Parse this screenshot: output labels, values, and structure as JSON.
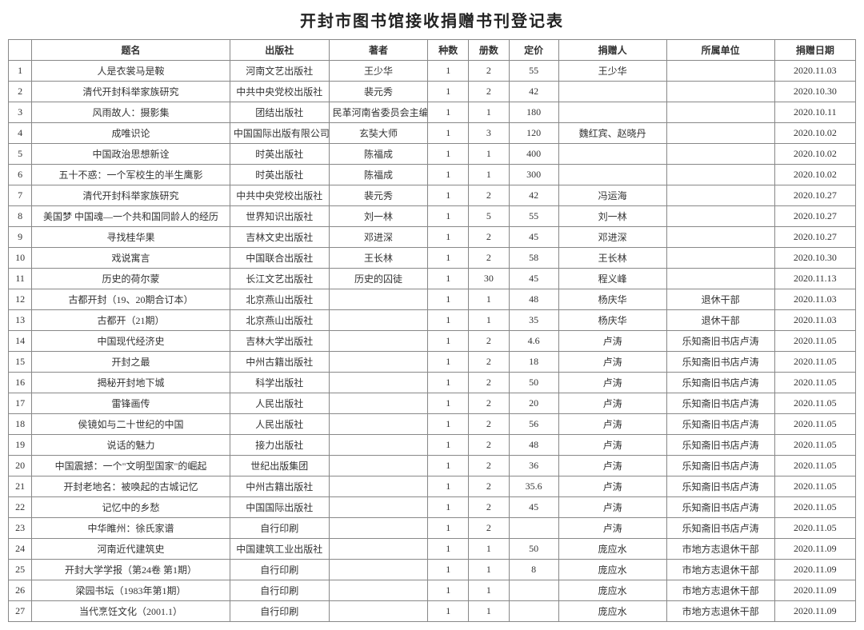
{
  "title": "开封市图书馆接收捐赠书刊登记表",
  "columns": [
    "",
    "题名",
    "出版社",
    "著者",
    "种数",
    "册数",
    "定价",
    "捐赠人",
    "所属单位",
    "捐赠日期"
  ],
  "rows": [
    {
      "n": "1",
      "title": "人是衣裳马是鞍",
      "pub": "河南文艺出版社",
      "author": "王少华",
      "kinds": "1",
      "vols": "2",
      "price": "55",
      "donor": "王少华",
      "unit": "",
      "date": "2020.11.03"
    },
    {
      "n": "2",
      "title": "清代开封科举家族研究",
      "pub": "中共中央党校出版社",
      "author": "裴元秀",
      "kinds": "1",
      "vols": "2",
      "price": "42",
      "donor": "",
      "unit": "",
      "date": "2020.10.30"
    },
    {
      "n": "3",
      "title": "风雨故人：摄影集",
      "pub": "团结出版社",
      "author": "民革河南省委员会主编",
      "kinds": "1",
      "vols": "1",
      "price": "180",
      "donor": "",
      "unit": "",
      "date": "2020.10.11"
    },
    {
      "n": "4",
      "title": "成唯识论",
      "pub": "中国国际出版有限公司",
      "author": "玄奘大师",
      "kinds": "1",
      "vols": "3",
      "price": "120",
      "donor": "魏红宾、赵晓丹",
      "unit": "",
      "date": "2020.10.02"
    },
    {
      "n": "5",
      "title": "中国政治思想新诠",
      "pub": "时英出版社",
      "author": "陈福成",
      "kinds": "1",
      "vols": "1",
      "price": "400",
      "donor": "",
      "unit": "",
      "date": "2020.10.02"
    },
    {
      "n": "6",
      "title": "五十不惑：一个军校生的半生鹰影",
      "pub": "时英出版社",
      "author": "陈福成",
      "kinds": "1",
      "vols": "1",
      "price": "300",
      "donor": "",
      "unit": "",
      "date": "2020.10.02"
    },
    {
      "n": "7",
      "title": "清代开封科举家族研究",
      "pub": "中共中央党校出版社",
      "author": "裴元秀",
      "kinds": "1",
      "vols": "2",
      "price": "42",
      "donor": "冯运海",
      "unit": "",
      "date": "2020.10.27"
    },
    {
      "n": "8",
      "title": "美国梦 中国魂—一个共和国同龄人的经历",
      "pub": "世界知识出版社",
      "author": "刘一林",
      "kinds": "1",
      "vols": "5",
      "price": "55",
      "donor": "刘一林",
      "unit": "",
      "date": "2020.10.27"
    },
    {
      "n": "9",
      "title": "寻找桂华果",
      "pub": "吉林文史出版社",
      "author": "邓进深",
      "kinds": "1",
      "vols": "2",
      "price": "45",
      "donor": "邓进深",
      "unit": "",
      "date": "2020.10.27"
    },
    {
      "n": "10",
      "title": "戏说寓言",
      "pub": "中国联合出版社",
      "author": "王长林",
      "kinds": "1",
      "vols": "2",
      "price": "58",
      "donor": "王长林",
      "unit": "",
      "date": "2020.10.30"
    },
    {
      "n": "11",
      "title": "历史的荷尔蒙",
      "pub": "长江文艺出版社",
      "author": "历史的囚徒",
      "kinds": "1",
      "vols": "30",
      "price": "45",
      "donor": "程义峰",
      "unit": "",
      "date": "2020.11.13"
    },
    {
      "n": "12",
      "title": "古都开封（19、20期合订本）",
      "pub": "北京燕山出版社",
      "author": "",
      "kinds": "1",
      "vols": "1",
      "price": "48",
      "donor": "杨庆华",
      "unit": "退休干部",
      "date": "2020.11.03"
    },
    {
      "n": "13",
      "title": "古都开（21期）",
      "pub": "北京燕山出版社",
      "author": "",
      "kinds": "1",
      "vols": "1",
      "price": "35",
      "donor": "杨庆华",
      "unit": "退休干部",
      "date": "2020.11.03"
    },
    {
      "n": "14",
      "title": "中国现代经济史",
      "pub": "吉林大学出版社",
      "author": "",
      "kinds": "1",
      "vols": "2",
      "price": "4.6",
      "donor": "卢涛",
      "unit": "乐知斋旧书店卢涛",
      "date": "2020.11.05"
    },
    {
      "n": "15",
      "title": "开封之最",
      "pub": "中州古籍出版社",
      "author": "",
      "kinds": "1",
      "vols": "2",
      "price": "18",
      "donor": "卢涛",
      "unit": "乐知斋旧书店卢涛",
      "date": "2020.11.05"
    },
    {
      "n": "16",
      "title": "揭秘开封地下城",
      "pub": "科学出版社",
      "author": "",
      "kinds": "1",
      "vols": "2",
      "price": "50",
      "donor": "卢涛",
      "unit": "乐知斋旧书店卢涛",
      "date": "2020.11.05"
    },
    {
      "n": "17",
      "title": "雷锋画传",
      "pub": "人民出版社",
      "author": "",
      "kinds": "1",
      "vols": "2",
      "price": "20",
      "donor": "卢涛",
      "unit": "乐知斋旧书店卢涛",
      "date": "2020.11.05"
    },
    {
      "n": "18",
      "title": "侯镜如与二十世纪的中国",
      "pub": "人民出版社",
      "author": "",
      "kinds": "1",
      "vols": "2",
      "price": "56",
      "donor": "卢涛",
      "unit": "乐知斋旧书店卢涛",
      "date": "2020.11.05"
    },
    {
      "n": "19",
      "title": "说话的魅力",
      "pub": "接力出版社",
      "author": "",
      "kinds": "1",
      "vols": "2",
      "price": "48",
      "donor": "卢涛",
      "unit": "乐知斋旧书店卢涛",
      "date": "2020.11.05"
    },
    {
      "n": "20",
      "title": "中国震撼：一个\"文明型国家\"的崛起",
      "pub": "世纪出版集团",
      "author": "",
      "kinds": "1",
      "vols": "2",
      "price": "36",
      "donor": "卢涛",
      "unit": "乐知斋旧书店卢涛",
      "date": "2020.11.05"
    },
    {
      "n": "21",
      "title": "开封老地名：被唤起的古城记忆",
      "pub": "中州古籍出版社",
      "author": "",
      "kinds": "1",
      "vols": "2",
      "price": "35.6",
      "donor": "卢涛",
      "unit": "乐知斋旧书店卢涛",
      "date": "2020.11.05"
    },
    {
      "n": "22",
      "title": "记忆中的乡愁",
      "pub": "中国国际出版社",
      "author": "",
      "kinds": "1",
      "vols": "2",
      "price": "45",
      "donor": "卢涛",
      "unit": "乐知斋旧书店卢涛",
      "date": "2020.11.05"
    },
    {
      "n": "23",
      "title": "中华睢州：徐氏家谱",
      "pub": "自行印刷",
      "author": "",
      "kinds": "1",
      "vols": "2",
      "price": "",
      "donor": "卢涛",
      "unit": "乐知斋旧书店卢涛",
      "date": "2020.11.05"
    },
    {
      "n": "24",
      "title": "河南近代建筑史",
      "pub": "中国建筑工业出版社",
      "author": "",
      "kinds": "1",
      "vols": "1",
      "price": "50",
      "donor": "庞应水",
      "unit": "市地方志退休干部",
      "date": "2020.11.09"
    },
    {
      "n": "25",
      "title": "开封大学学报（第24卷 第1期）",
      "pub": "自行印刷",
      "author": "",
      "kinds": "1",
      "vols": "1",
      "price": "8",
      "donor": "庞应水",
      "unit": "市地方志退休干部",
      "date": "2020.11.09"
    },
    {
      "n": "26",
      "title": "梁园书坛（1983年第1期）",
      "pub": "自行印刷",
      "author": "",
      "kinds": "1",
      "vols": "1",
      "price": "",
      "donor": "庞应水",
      "unit": "市地方志退休干部",
      "date": "2020.11.09"
    },
    {
      "n": "27",
      "title": "当代烹饪文化（2001.1）",
      "pub": "自行印刷",
      "author": "",
      "kinds": "1",
      "vols": "1",
      "price": "",
      "donor": "庞应水",
      "unit": "市地方志退休干部",
      "date": "2020.11.09"
    }
  ]
}
